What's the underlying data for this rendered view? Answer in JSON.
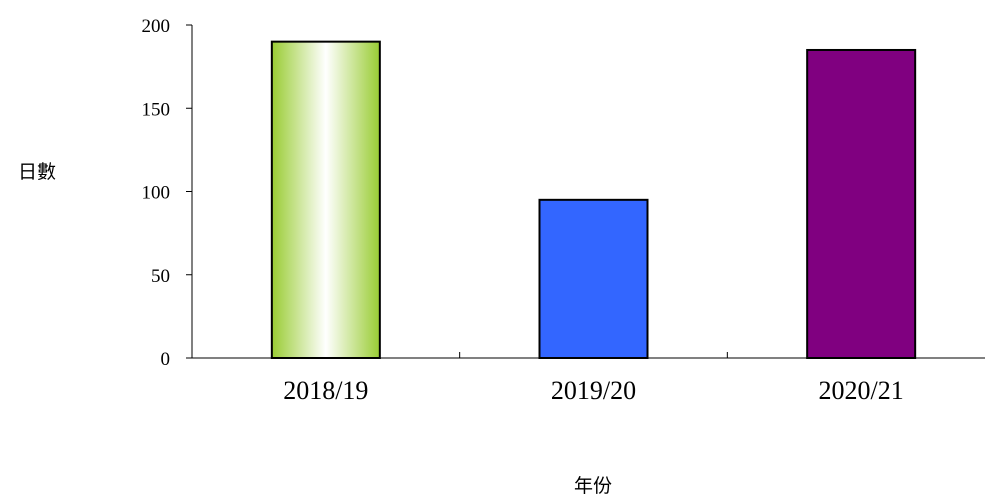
{
  "chart_data": {
    "type": "bar",
    "title": "",
    "xlabel": "年份",
    "ylabel": "日數",
    "categories": [
      "2018/19",
      "2019/20",
      "2020/21"
    ],
    "values": [
      190,
      95,
      185
    ],
    "ylim": [
      0,
      200
    ],
    "yticks": [
      0,
      50,
      100,
      150,
      200
    ],
    "grid": false,
    "legend": "none",
    "bar_fills": [
      "gradient-green-white",
      "#3366ff",
      "#800080"
    ]
  }
}
